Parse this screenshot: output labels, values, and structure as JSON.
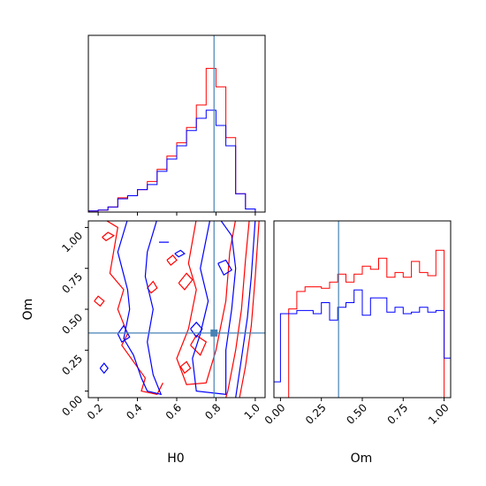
{
  "chart_data": {
    "type": "corner",
    "parameters": [
      "H0",
      "Om"
    ],
    "truths": {
      "H0": 0.79,
      "Om": 0.355
    },
    "truth_color": "#4682b4",
    "series_colors": [
      "#ff0000",
      "#0000ff"
    ],
    "ranges": {
      "H0": [
        0.15,
        1.05
      ],
      "Om": [
        -0.04,
        1.04
      ]
    },
    "ticks": {
      "H0": [
        0.2,
        0.4,
        0.6,
        0.8,
        1.0
      ],
      "H0_labels": [
        "0.2",
        "0.4",
        "0.6",
        "0.8",
        "1.0"
      ],
      "Om_y": [
        0.0,
        0.25,
        0.5,
        0.75,
        1.0
      ],
      "Om_y_labels": [
        "0.00",
        "0.25",
        "0.50",
        "0.75",
        "1.00"
      ],
      "Om_x": [
        0.0,
        0.25,
        0.5,
        0.75,
        1.0
      ],
      "Om_x_labels": [
        "0.00",
        "0.25",
        "0.50",
        "0.75",
        "1.00"
      ]
    },
    "axis_labels": {
      "x_left": "H0",
      "x_right": "Om",
      "y_left": "Om"
    },
    "hist_H0": {
      "bin_edges": [
        0.15,
        0.2,
        0.25,
        0.3,
        0.35,
        0.4,
        0.45,
        0.5,
        0.55,
        0.6,
        0.65,
        0.7,
        0.75,
        0.8,
        0.85,
        0.9,
        0.95,
        1.0,
        1.05
      ],
      "series": [
        {
          "values": [
            1,
            2,
            5,
            14,
            16,
            22,
            30,
            42,
            55,
            68,
            83,
            105,
            141,
            123,
            73,
            18,
            3,
            0
          ]
        },
        {
          "values": [
            1,
            2,
            5,
            13,
            16,
            22,
            27,
            40,
            52,
            65,
            80,
            92,
            100,
            85,
            65,
            18,
            3,
            0
          ]
        }
      ]
    },
    "hist_Om": {
      "bin_edges": [
        -0.04,
        0.0,
        0.05,
        0.1,
        0.15,
        0.2,
        0.25,
        0.3,
        0.35,
        0.4,
        0.45,
        0.5,
        0.55,
        0.6,
        0.65,
        0.7,
        0.75,
        0.8,
        0.85,
        0.9,
        0.95,
        1.0,
        1.04
      ],
      "series": [
        {
          "values": [
            0,
            0,
            0.56,
            0.67,
            0.7,
            0.7,
            0.69,
            0.73,
            0.78,
            0.73,
            0.78,
            0.83,
            0.81,
            0.88,
            0.76,
            0.79,
            0.76,
            0.86,
            0.79,
            0.77,
            0.93,
            0
          ]
        },
        {
          "values": [
            0.1,
            0.53,
            0.53,
            0.55,
            0.55,
            0.53,
            0.6,
            0.49,
            0.57,
            0.6,
            0.68,
            0.52,
            0.63,
            0.63,
            0.54,
            0.57,
            0.53,
            0.54,
            0.57,
            0.54,
            0.55,
            0.25
          ]
        }
      ]
    },
    "contours_H0_Om": [
      {
        "series": 0,
        "paths": [
          [
            [
              0.23,
              1.05
            ],
            [
              0.3,
              1.0
            ],
            [
              0.26,
              0.72
            ],
            [
              0.33,
              0.62
            ],
            [
              0.3,
              0.5
            ],
            [
              0.35,
              0.35
            ],
            [
              0.32,
              0.28
            ],
            [
              0.38,
              0.18
            ],
            [
              0.44,
              0.08
            ],
            [
              0.42,
              0.0
            ],
            [
              0.5,
              -0.02
            ],
            [
              0.53,
              0.05
            ]
          ],
          [
            [
              0.7,
              1.05
            ],
            [
              0.66,
              0.78
            ],
            [
              0.7,
              0.62
            ],
            [
              0.66,
              0.38
            ],
            [
              0.6,
              0.2
            ],
            [
              0.65,
              0.04
            ],
            [
              0.75,
              0.05
            ],
            [
              0.8,
              0.25
            ],
            [
              0.85,
              0.55
            ],
            [
              0.87,
              0.85
            ],
            [
              0.9,
              1.05
            ]
          ],
          [
            [
              0.97,
              1.05
            ],
            [
              0.95,
              0.8
            ],
            [
              0.93,
              0.5
            ],
            [
              0.9,
              0.25
            ],
            [
              0.86,
              0.0
            ],
            [
              0.85,
              -0.04
            ]
          ],
          [
            [
              1.02,
              1.05
            ],
            [
              1.0,
              0.7
            ],
            [
              0.98,
              0.4
            ],
            [
              0.95,
              0.15
            ],
            [
              0.92,
              -0.04
            ]
          ],
          [
            [
              0.22,
              0.94
            ],
            [
              0.25,
              0.97
            ],
            [
              0.28,
              0.95
            ],
            [
              0.24,
              0.92
            ],
            [
              0.22,
              0.94
            ]
          ],
          [
            [
              0.18,
              0.55
            ],
            [
              0.21,
              0.52
            ],
            [
              0.23,
              0.55
            ],
            [
              0.2,
              0.58
            ],
            [
              0.18,
              0.55
            ]
          ],
          [
            [
              0.67,
              0.28
            ],
            [
              0.72,
              0.22
            ],
            [
              0.75,
              0.3
            ],
            [
              0.7,
              0.34
            ],
            [
              0.67,
              0.28
            ]
          ],
          [
            [
              0.61,
              0.66
            ],
            [
              0.65,
              0.72
            ],
            [
              0.68,
              0.68
            ],
            [
              0.64,
              0.62
            ],
            [
              0.61,
              0.66
            ]
          ],
          [
            [
              0.55,
              0.8
            ],
            [
              0.58,
              0.83
            ],
            [
              0.6,
              0.8
            ],
            [
              0.57,
              0.77
            ],
            [
              0.55,
              0.8
            ]
          ],
          [
            [
              0.45,
              0.63
            ],
            [
              0.48,
              0.67
            ],
            [
              0.5,
              0.63
            ],
            [
              0.47,
              0.6
            ],
            [
              0.45,
              0.63
            ]
          ],
          [
            [
              0.62,
              0.15
            ],
            [
              0.65,
              0.18
            ],
            [
              0.67,
              0.14
            ],
            [
              0.64,
              0.11
            ],
            [
              0.62,
              0.15
            ]
          ]
        ]
      },
      {
        "series": 1,
        "paths": [
          [
            [
              0.35,
              1.05
            ],
            [
              0.3,
              0.85
            ],
            [
              0.35,
              0.62
            ],
            [
              0.36,
              0.5
            ],
            [
              0.33,
              0.32
            ],
            [
              0.38,
              0.22
            ],
            [
              0.42,
              0.08
            ],
            [
              0.45,
              0.0
            ],
            [
              0.52,
              -0.02
            ],
            [
              0.48,
              0.1
            ],
            [
              0.45,
              0.3
            ],
            [
              0.48,
              0.5
            ],
            [
              0.44,
              0.7
            ],
            [
              0.45,
              0.85
            ],
            [
              0.5,
              1.05
            ]
          ],
          [
            [
              0.77,
              1.05
            ],
            [
              0.72,
              0.75
            ],
            [
              0.76,
              0.55
            ],
            [
              0.72,
              0.35
            ],
            [
              0.68,
              0.2
            ],
            [
              0.7,
              0.0
            ],
            [
              0.85,
              -0.02
            ],
            [
              0.85,
              0.25
            ],
            [
              0.88,
              0.5
            ],
            [
              0.9,
              0.75
            ],
            [
              0.88,
              0.95
            ],
            [
              0.82,
              1.05
            ]
          ],
          [
            [
              1.0,
              1.05
            ],
            [
              0.98,
              0.7
            ],
            [
              0.96,
              0.45
            ],
            [
              0.93,
              0.2
            ],
            [
              0.9,
              -0.04
            ]
          ],
          [
            [
              0.67,
              0.38
            ],
            [
              0.7,
              0.42
            ],
            [
              0.73,
              0.38
            ],
            [
              0.7,
              0.33
            ],
            [
              0.67,
              0.38
            ]
          ],
          [
            [
              0.81,
              0.78
            ],
            [
              0.85,
              0.8
            ],
            [
              0.88,
              0.74
            ],
            [
              0.84,
              0.71
            ],
            [
              0.81,
              0.78
            ]
          ],
          [
            [
              0.21,
              0.14
            ],
            [
              0.23,
              0.17
            ],
            [
              0.25,
              0.14
            ],
            [
              0.23,
              0.11
            ],
            [
              0.21,
              0.14
            ]
          ],
          [
            [
              0.3,
              0.35
            ],
            [
              0.33,
              0.4
            ],
            [
              0.36,
              0.33
            ],
            [
              0.32,
              0.3
            ],
            [
              0.3,
              0.35
            ]
          ],
          [
            [
              0.59,
              0.84
            ],
            [
              0.62,
              0.86
            ],
            [
              0.64,
              0.84
            ],
            [
              0.61,
              0.82
            ],
            [
              0.59,
              0.84
            ]
          ],
          [
            [
              0.51,
              0.91
            ],
            [
              0.56,
              0.91
            ]
          ]
        ]
      }
    ]
  }
}
